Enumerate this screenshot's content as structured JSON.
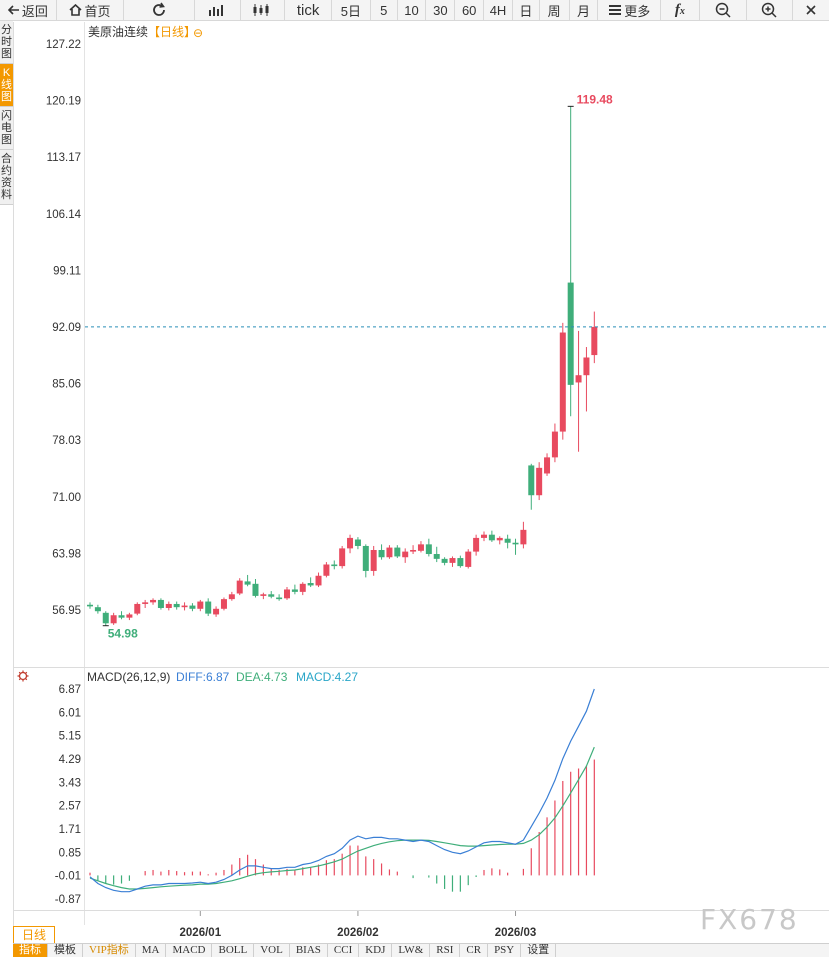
{
  "toolbar": {
    "back_label": "返回",
    "home_label": "首页",
    "tick_label": "tick",
    "periods": [
      "5日",
      "5",
      "10",
      "30",
      "60",
      "4H",
      "日",
      "周",
      "月"
    ],
    "more_label": "更多"
  },
  "side_tabs": [
    "分时图",
    "K线图",
    "闪电图",
    "合约资料"
  ],
  "chart_title": {
    "name": "美原油连续",
    "period_tag": "【日线】",
    "circle_glyph": "⊖"
  },
  "macd": {
    "name": "MACD(26,12,9)",
    "diff_label": "DIFF:6.87",
    "dea_label": "DEA:4.73",
    "macd_label": "MACD:4.27"
  },
  "period_label": "日线",
  "bottom_tabs": [
    "指标",
    "模板",
    "VIP指标",
    "MA",
    "MACD",
    "BOLL",
    "VOL",
    "BIAS",
    "CCI",
    "KDJ",
    "LW&",
    "RSI",
    "CR",
    "PSY",
    "设置"
  ],
  "watermark": "FX678",
  "colors": {
    "up": "#e84a5f",
    "down": "#3fae7a",
    "diff": "#3a7fd5",
    "dea": "#3fae7a",
    "accent": "#f39800",
    "last_price_line": "#2a8fb8"
  },
  "chart_data": [
    {
      "type": "candlestick",
      "title": "美原油连续【日线】",
      "ylim": [
        52.5,
        129.0
      ],
      "y_ticks": [
        "127.22",
        "120.19",
        "113.17",
        "106.14",
        "99.11",
        "92.09",
        "85.06",
        "78.03",
        "71.00",
        "63.98",
        "56.95"
      ],
      "x_ticks": [
        "2026/01",
        "2026/02",
        "2026/03"
      ],
      "x_tick_index": [
        14,
        34,
        54
      ],
      "max_label": "119.48",
      "min_label": "54.98",
      "last_price": 92.1,
      "ohlc": [
        [
          57.6,
          57.9,
          57.1,
          57.4
        ],
        [
          57.3,
          57.6,
          56.5,
          56.8
        ],
        [
          56.6,
          56.8,
          55.0,
          55.3
        ],
        [
          55.3,
          56.6,
          55.1,
          56.3
        ],
        [
          56.3,
          56.8,
          55.8,
          56.0
        ],
        [
          56.0,
          56.6,
          55.7,
          56.4
        ],
        [
          56.5,
          57.9,
          56.3,
          57.7
        ],
        [
          57.7,
          58.2,
          57.2,
          57.9
        ],
        [
          57.9,
          58.4,
          57.6,
          58.2
        ],
        [
          58.2,
          58.4,
          57.0,
          57.2
        ],
        [
          57.2,
          58.0,
          56.9,
          57.7
        ],
        [
          57.7,
          58.0,
          57.0,
          57.3
        ],
        [
          57.3,
          57.9,
          56.9,
          57.5
        ],
        [
          57.5,
          57.8,
          56.8,
          57.1
        ],
        [
          57.1,
          58.2,
          56.8,
          58.0
        ],
        [
          58.0,
          58.4,
          56.2,
          56.5
        ],
        [
          56.4,
          57.4,
          56.1,
          57.1
        ],
        [
          57.1,
          58.5,
          56.9,
          58.3
        ],
        [
          58.3,
          59.2,
          58.1,
          58.9
        ],
        [
          59.0,
          60.9,
          58.8,
          60.6
        ],
        [
          60.5,
          61.3,
          59.9,
          60.1
        ],
        [
          60.2,
          60.8,
          58.5,
          58.7
        ],
        [
          58.7,
          59.1,
          58.3,
          58.9
        ],
        [
          58.9,
          59.3,
          58.4,
          58.6
        ],
        [
          58.5,
          58.9,
          58.1,
          58.3
        ],
        [
          58.4,
          59.8,
          58.2,
          59.5
        ],
        [
          59.5,
          60.1,
          58.9,
          59.2
        ],
        [
          59.2,
          60.4,
          58.8,
          60.2
        ],
        [
          60.3,
          61.0,
          59.8,
          60.0
        ],
        [
          60.0,
          61.6,
          59.8,
          61.2
        ],
        [
          61.2,
          62.9,
          61.0,
          62.6
        ],
        [
          62.6,
          63.1,
          62.0,
          62.4
        ],
        [
          62.4,
          64.9,
          62.1,
          64.6
        ],
        [
          64.6,
          66.3,
          64.0,
          65.9
        ],
        [
          65.7,
          66.0,
          64.5,
          64.9
        ],
        [
          64.9,
          65.1,
          61.0,
          61.8
        ],
        [
          61.8,
          64.9,
          61.2,
          64.4
        ],
        [
          64.4,
          65.1,
          63.2,
          63.5
        ],
        [
          63.5,
          65.0,
          63.3,
          64.7
        ],
        [
          64.7,
          65.0,
          63.4,
          63.6
        ],
        [
          63.5,
          64.6,
          62.8,
          64.2
        ],
        [
          64.2,
          65.0,
          63.9,
          64.4
        ],
        [
          64.3,
          65.5,
          64.1,
          65.1
        ],
        [
          65.1,
          65.8,
          63.6,
          63.9
        ],
        [
          63.9,
          64.8,
          62.9,
          63.3
        ],
        [
          63.3,
          63.5,
          62.5,
          62.8
        ],
        [
          62.8,
          63.6,
          62.3,
          63.4
        ],
        [
          63.4,
          63.7,
          62.2,
          62.4
        ],
        [
          62.3,
          64.5,
          62.1,
          64.2
        ],
        [
          64.2,
          66.3,
          63.7,
          65.9
        ],
        [
          65.9,
          66.7,
          65.5,
          66.3
        ],
        [
          66.3,
          66.8,
          65.4,
          65.6
        ],
        [
          65.6,
          66.1,
          65.1,
          65.9
        ],
        [
          65.8,
          66.3,
          64.6,
          65.3
        ],
        [
          65.3,
          65.8,
          63.8,
          65.1
        ],
        [
          65.1,
          67.9,
          64.6,
          66.9
        ],
        [
          74.9,
          75.1,
          69.4,
          71.2
        ],
        [
          71.2,
          75.3,
          70.6,
          74.6
        ],
        [
          73.9,
          76.4,
          73.6,
          75.9
        ],
        [
          75.9,
          80.1,
          75.3,
          79.1
        ],
        [
          79.1,
          92.6,
          78.1,
          91.4
        ],
        [
          97.6,
          119.48,
          81.0,
          84.9
        ],
        [
          85.2,
          91.6,
          76.6,
          86.1
        ],
        [
          86.1,
          89.6,
          81.6,
          88.3
        ],
        [
          88.6,
          94.0,
          87.6,
          92.1
        ]
      ]
    },
    {
      "type": "macd",
      "title": "MACD(26,12,9)",
      "ylim": [
        -1.5,
        7.4
      ],
      "y_ticks": [
        "6.87",
        "6.01",
        "5.15",
        "4.29",
        "3.43",
        "2.57",
        "1.71",
        "0.85",
        "-0.01",
        "-0.87"
      ],
      "diff": [
        -0.05,
        -0.3,
        -0.45,
        -0.55,
        -0.6,
        -0.6,
        -0.5,
        -0.4,
        -0.35,
        -0.35,
        -0.3,
        -0.3,
        -0.3,
        -0.28,
        -0.25,
        -0.3,
        -0.25,
        -0.15,
        0.0,
        0.2,
        0.35,
        0.35,
        0.3,
        0.25,
        0.25,
        0.3,
        0.3,
        0.4,
        0.45,
        0.55,
        0.7,
        0.8,
        1.0,
        1.3,
        1.45,
        1.35,
        1.4,
        1.4,
        1.35,
        1.35,
        1.3,
        1.25,
        1.3,
        1.25,
        1.1,
        0.95,
        0.85,
        0.8,
        0.9,
        1.05,
        1.2,
        1.25,
        1.25,
        1.2,
        1.15,
        1.3,
        1.8,
        2.3,
        2.85,
        3.5,
        4.3,
        4.95,
        5.5,
        6.05,
        6.87
      ],
      "dea": [
        -0.1,
        -0.2,
        -0.3,
        -0.38,
        -0.45,
        -0.5,
        -0.5,
        -0.48,
        -0.45,
        -0.42,
        -0.4,
        -0.38,
        -0.36,
        -0.35,
        -0.32,
        -0.32,
        -0.3,
        -0.25,
        -0.2,
        -0.12,
        -0.03,
        0.05,
        0.1,
        0.13,
        0.15,
        0.18,
        0.2,
        0.25,
        0.3,
        0.35,
        0.42,
        0.5,
        0.6,
        0.75,
        0.9,
        1.0,
        1.1,
        1.18,
        1.24,
        1.28,
        1.3,
        1.3,
        1.3,
        1.29,
        1.25,
        1.2,
        1.15,
        1.1,
        1.08,
        1.08,
        1.1,
        1.12,
        1.14,
        1.15,
        1.15,
        1.18,
        1.3,
        1.5,
        1.78,
        2.12,
        2.56,
        3.04,
        3.53,
        4.03,
        4.73
      ],
      "macd": [
        0.1,
        -0.2,
        -0.3,
        -0.34,
        -0.3,
        -0.2,
        0.0,
        0.16,
        0.2,
        0.14,
        0.2,
        0.16,
        0.12,
        0.14,
        0.14,
        0.04,
        0.1,
        0.2,
        0.4,
        0.64,
        0.76,
        0.6,
        0.4,
        0.24,
        0.2,
        0.24,
        0.2,
        0.3,
        0.3,
        0.4,
        0.56,
        0.6,
        0.8,
        1.1,
        1.1,
        0.7,
        0.6,
        0.44,
        0.22,
        0.14,
        0.0,
        -0.1,
        0.0,
        -0.08,
        -0.3,
        -0.5,
        -0.6,
        -0.6,
        -0.36,
        -0.06,
        0.2,
        0.26,
        0.22,
        0.1,
        0.0,
        0.24,
        1.0,
        1.6,
        2.14,
        2.76,
        3.48,
        3.82,
        3.94,
        4.04,
        4.27
      ]
    }
  ]
}
